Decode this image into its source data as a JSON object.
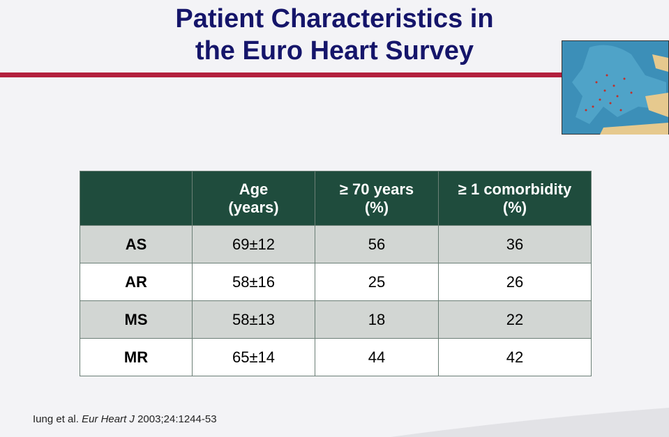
{
  "header": {
    "title": [
      "Patient Characteristics in",
      "the Euro Heart Survey"
    ]
  },
  "table": {
    "columns": [
      [
        "Age",
        "(years)"
      ],
      [
        "≥ 70 years",
        "(%)"
      ],
      [
        "≥ 1 comorbidity",
        "(%)"
      ]
    ],
    "rows": [
      [
        "AS",
        "69±12",
        "56",
        "36"
      ],
      [
        "AR",
        "58±16",
        "25",
        "26"
      ],
      [
        "MS",
        "58±13",
        "18",
        "22"
      ],
      [
        "MR",
        "65±14",
        "44",
        "42"
      ]
    ]
  },
  "citation": {
    "authors": "Iung et al.",
    "journal": "Eur Heart J",
    "details": "2003;24:1244-53"
  }
}
